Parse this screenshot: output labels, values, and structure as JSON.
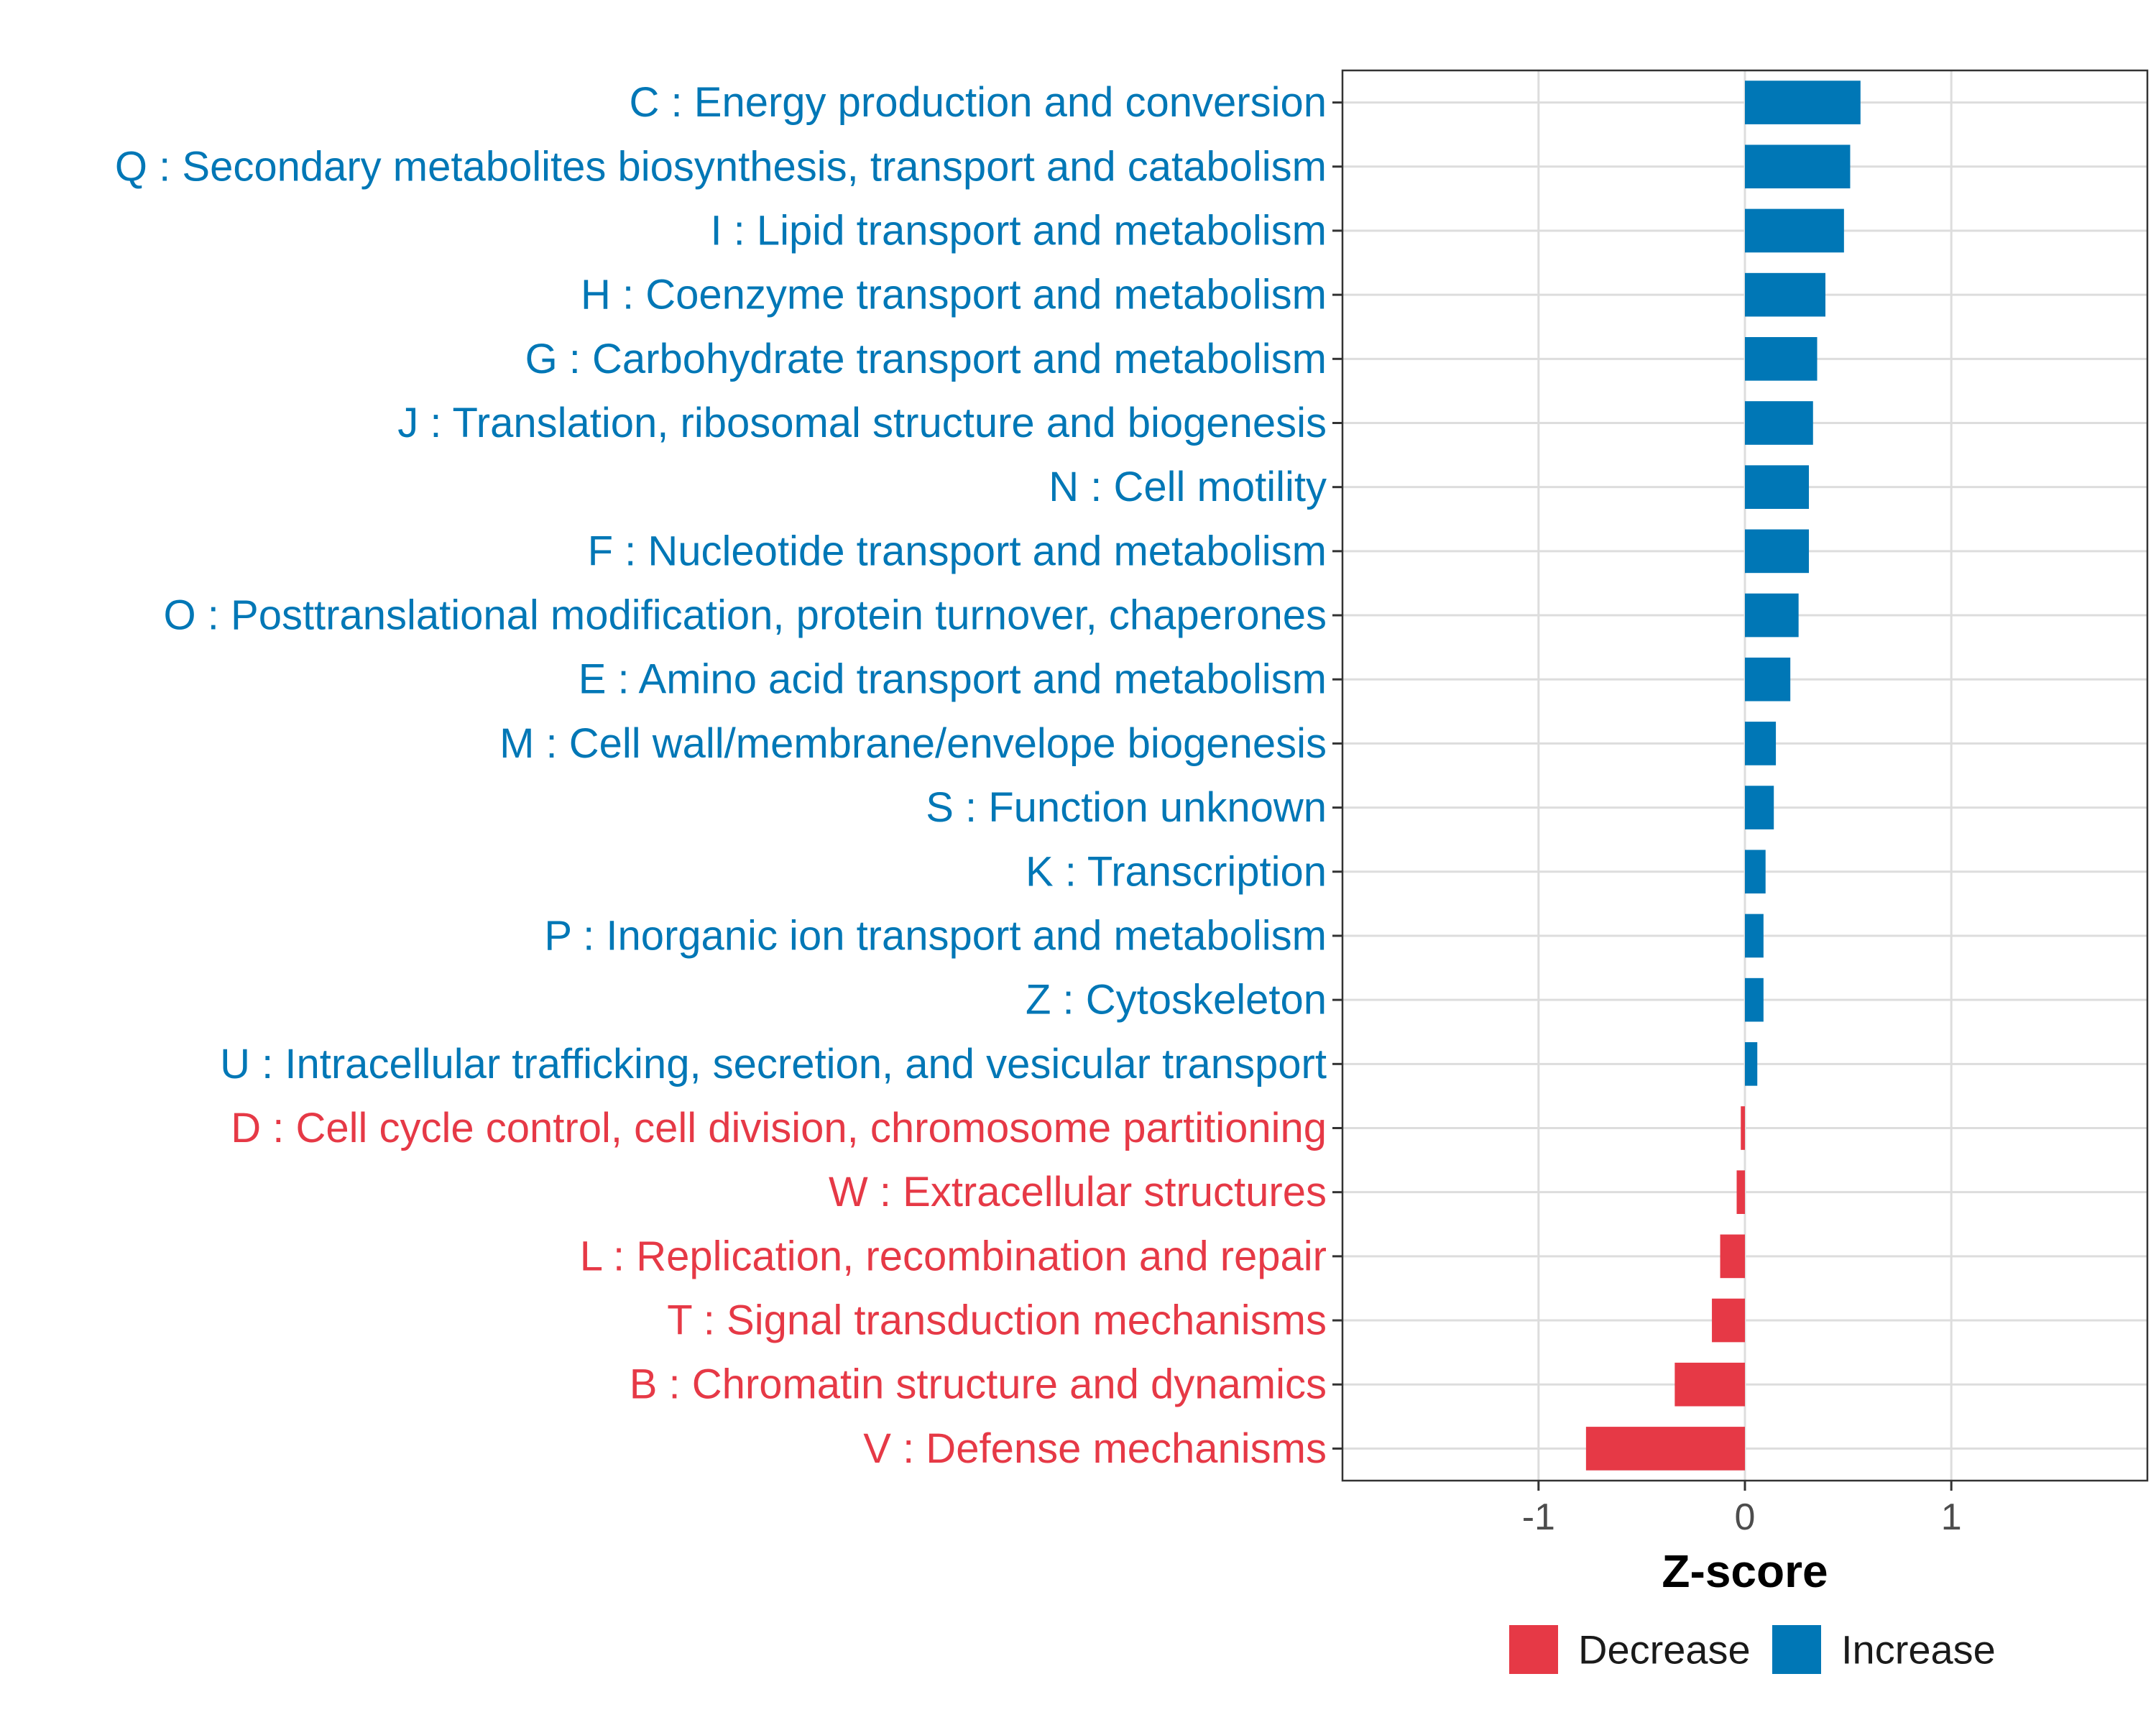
{
  "colors": {
    "decrease": "#E63946",
    "increase": "#0077B6",
    "grid": "#DDDDDD",
    "axis": "#333333"
  },
  "chart_data": {
    "type": "bar",
    "orientation": "horizontal",
    "title": "",
    "xlabel": "Z-score",
    "ylabel": "",
    "xlim": [
      -1.95,
      1.95
    ],
    "x_ticks": [
      -1,
      0,
      1
    ],
    "x_tick_labels": [
      "-1",
      "0",
      "1"
    ],
    "grid": true,
    "legend_position": "bottom",
    "legend": [
      {
        "name": "Decrease",
        "color": "#E63946"
      },
      {
        "name": "Increase",
        "color": "#0077B6"
      }
    ],
    "categories": [
      "C : Energy production and conversion",
      "Q : Secondary metabolites biosynthesis, transport and catabolism",
      "I : Lipid transport and metabolism",
      "H : Coenzyme transport and metabolism",
      "G : Carbohydrate transport and metabolism",
      "J : Translation, ribosomal structure and biogenesis",
      "N : Cell motility",
      "F : Nucleotide transport and metabolism",
      "O : Posttranslational modification, protein turnover, chaperones",
      "E : Amino acid transport and metabolism",
      "M : Cell wall/membrane/envelope biogenesis",
      "S : Function unknown",
      "K : Transcription",
      "P : Inorganic ion transport and metabolism",
      "Z : Cytoskeleton",
      "U : Intracellular trafficking, secretion, and vesicular transport",
      "D : Cell cycle control, cell division, chromosome partitioning",
      "W : Extracellular structures",
      "L : Replication, recombination and repair",
      "T : Signal transduction mechanisms",
      "B : Chromatin structure and dynamics",
      "V : Defense mechanisms"
    ],
    "values": [
      0.56,
      0.51,
      0.48,
      0.39,
      0.35,
      0.33,
      0.31,
      0.31,
      0.26,
      0.22,
      0.15,
      0.14,
      0.1,
      0.09,
      0.09,
      0.06,
      -0.02,
      -0.04,
      -0.12,
      -0.16,
      -0.34,
      -0.77
    ]
  }
}
